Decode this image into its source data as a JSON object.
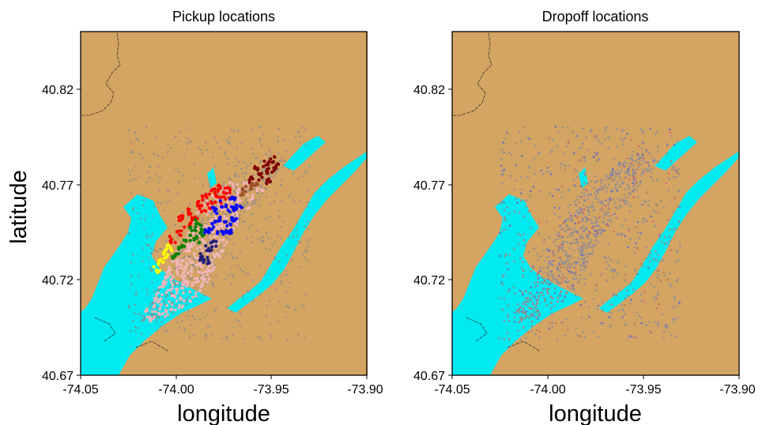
{
  "colors": {
    "land": "#d4a463",
    "water": "#00eaf0",
    "pickup_gray": "#8c8c8c",
    "pickup_pink": "#f2b6bc",
    "cluster_red": "#ff0000",
    "cluster_blue": "#0000ff",
    "cluster_green": "#008000",
    "cluster_yellow": "#ffff00",
    "cluster_darkred": "#800000",
    "cluster_brown": "#a0522d",
    "cluster_navy": "#1e1e78",
    "dropoff_gray": "#8f8f95",
    "dropoff_tint_red": "#c97060",
    "dropoff_tint_blue": "#7070c0",
    "coastline": "#222222"
  },
  "ylabel": "latitude",
  "chart_data": [
    {
      "type": "scatter",
      "title": "Pickup locations",
      "xlabel": "longitude",
      "ylabel": "latitude",
      "xlim": [
        -74.05,
        -73.9
      ],
      "ylim": [
        40.67,
        40.85
      ],
      "xticks": [
        "-74.05",
        "-74.00",
        "-73.95",
        "-73.90"
      ],
      "yticks": [
        "40.67",
        "40.72",
        "40.77",
        "40.82"
      ],
      "xtick_values": [
        -74.05,
        -74.0,
        -73.95,
        -73.9
      ],
      "ytick_values": [
        40.67,
        40.72,
        40.77,
        40.82
      ],
      "grid": false,
      "series_colors": [
        "pickup_gray",
        "pickup_pink",
        "cluster_red",
        "cluster_blue",
        "cluster_green",
        "cluster_yellow",
        "cluster_darkred",
        "cluster_brown",
        "cluster_navy"
      ],
      "clusters": [
        {
          "color": "cluster_red",
          "points": [
            [
              -73.997,
              40.752
            ],
            [
              -73.993,
              40.756
            ],
            [
              -73.989,
              40.76
            ],
            [
              -73.985,
              40.763
            ],
            [
              -73.981,
              40.766
            ],
            [
              -73.977,
              40.768
            ],
            [
              -73.973,
              40.767
            ],
            [
              -73.986,
              40.757
            ],
            [
              -73.99,
              40.753
            ],
            [
              -73.978,
              40.762
            ],
            [
              -73.982,
              40.759
            ],
            [
              -73.994,
              40.749
            ],
            [
              -73.999,
              40.745
            ],
            [
              -74.002,
              40.741
            ],
            [
              -73.974,
              40.764
            ]
          ]
        },
        {
          "color": "cluster_blue",
          "points": [
            [
              -73.975,
              40.76
            ],
            [
              -73.971,
              40.757
            ],
            [
              -73.969,
              40.752
            ],
            [
              -73.973,
              40.75
            ],
            [
              -73.978,
              40.752
            ],
            [
              -73.981,
              40.748
            ],
            [
              -73.984,
              40.745
            ],
            [
              -73.977,
              40.744
            ],
            [
              -73.972,
              40.746
            ],
            [
              -73.967,
              40.758
            ],
            [
              -73.97,
              40.762
            ],
            [
              -73.98,
              40.756
            ]
          ]
        },
        {
          "color": "cluster_green",
          "points": [
            [
              -73.988,
              40.75
            ],
            [
              -73.991,
              40.746
            ],
            [
              -73.994,
              40.742
            ],
            [
              -73.997,
              40.737
            ],
            [
              -74.0,
              40.733
            ],
            [
              -73.986,
              40.745
            ],
            [
              -73.989,
              40.741
            ]
          ]
        },
        {
          "color": "cluster_yellow",
          "points": [
            [
              -74.006,
              40.733
            ],
            [
              -74.008,
              40.729
            ],
            [
              -74.01,
              40.725
            ],
            [
              -74.004,
              40.737
            ]
          ]
        },
        {
          "color": "cluster_darkred",
          "points": [
            [
              -73.957,
              40.778
            ],
            [
              -73.953,
              40.781
            ],
            [
              -73.949,
              40.783
            ],
            [
              -73.955,
              40.774
            ],
            [
              -73.951,
              40.777
            ],
            [
              -73.96,
              40.772
            ],
            [
              -73.947,
              40.779
            ],
            [
              -73.952,
              40.771
            ]
          ]
        },
        {
          "color": "cluster_brown",
          "points": [
            [
              -73.962,
              40.768
            ],
            [
              -73.966,
              40.766
            ],
            [
              -73.959,
              40.771
            ]
          ]
        },
        {
          "color": "cluster_navy",
          "points": [
            [
              -73.983,
              40.736
            ],
            [
              -73.986,
              40.732
            ],
            [
              -73.98,
              40.739
            ],
            [
              -73.984,
              40.73
            ]
          ]
        }
      ]
    },
    {
      "type": "scatter",
      "title": "Dropoff locations",
      "xlabel": "longitude",
      "ylabel": "",
      "xlim": [
        -74.05,
        -73.9
      ],
      "ylim": [
        40.67,
        40.85
      ],
      "xticks": [
        "-74.05",
        "-74.00",
        "-73.95",
        "-73.90"
      ],
      "yticks": [
        "40.67",
        "40.72",
        "40.77",
        "40.82"
      ],
      "xtick_values": [
        -74.05,
        -74.0,
        -73.95,
        -73.9
      ],
      "ytick_values": [
        40.67,
        40.72,
        40.77,
        40.82
      ],
      "grid": false,
      "series_colors": [
        "dropoff_gray",
        "dropoff_tint_red",
        "dropoff_tint_blue"
      ]
    }
  ]
}
